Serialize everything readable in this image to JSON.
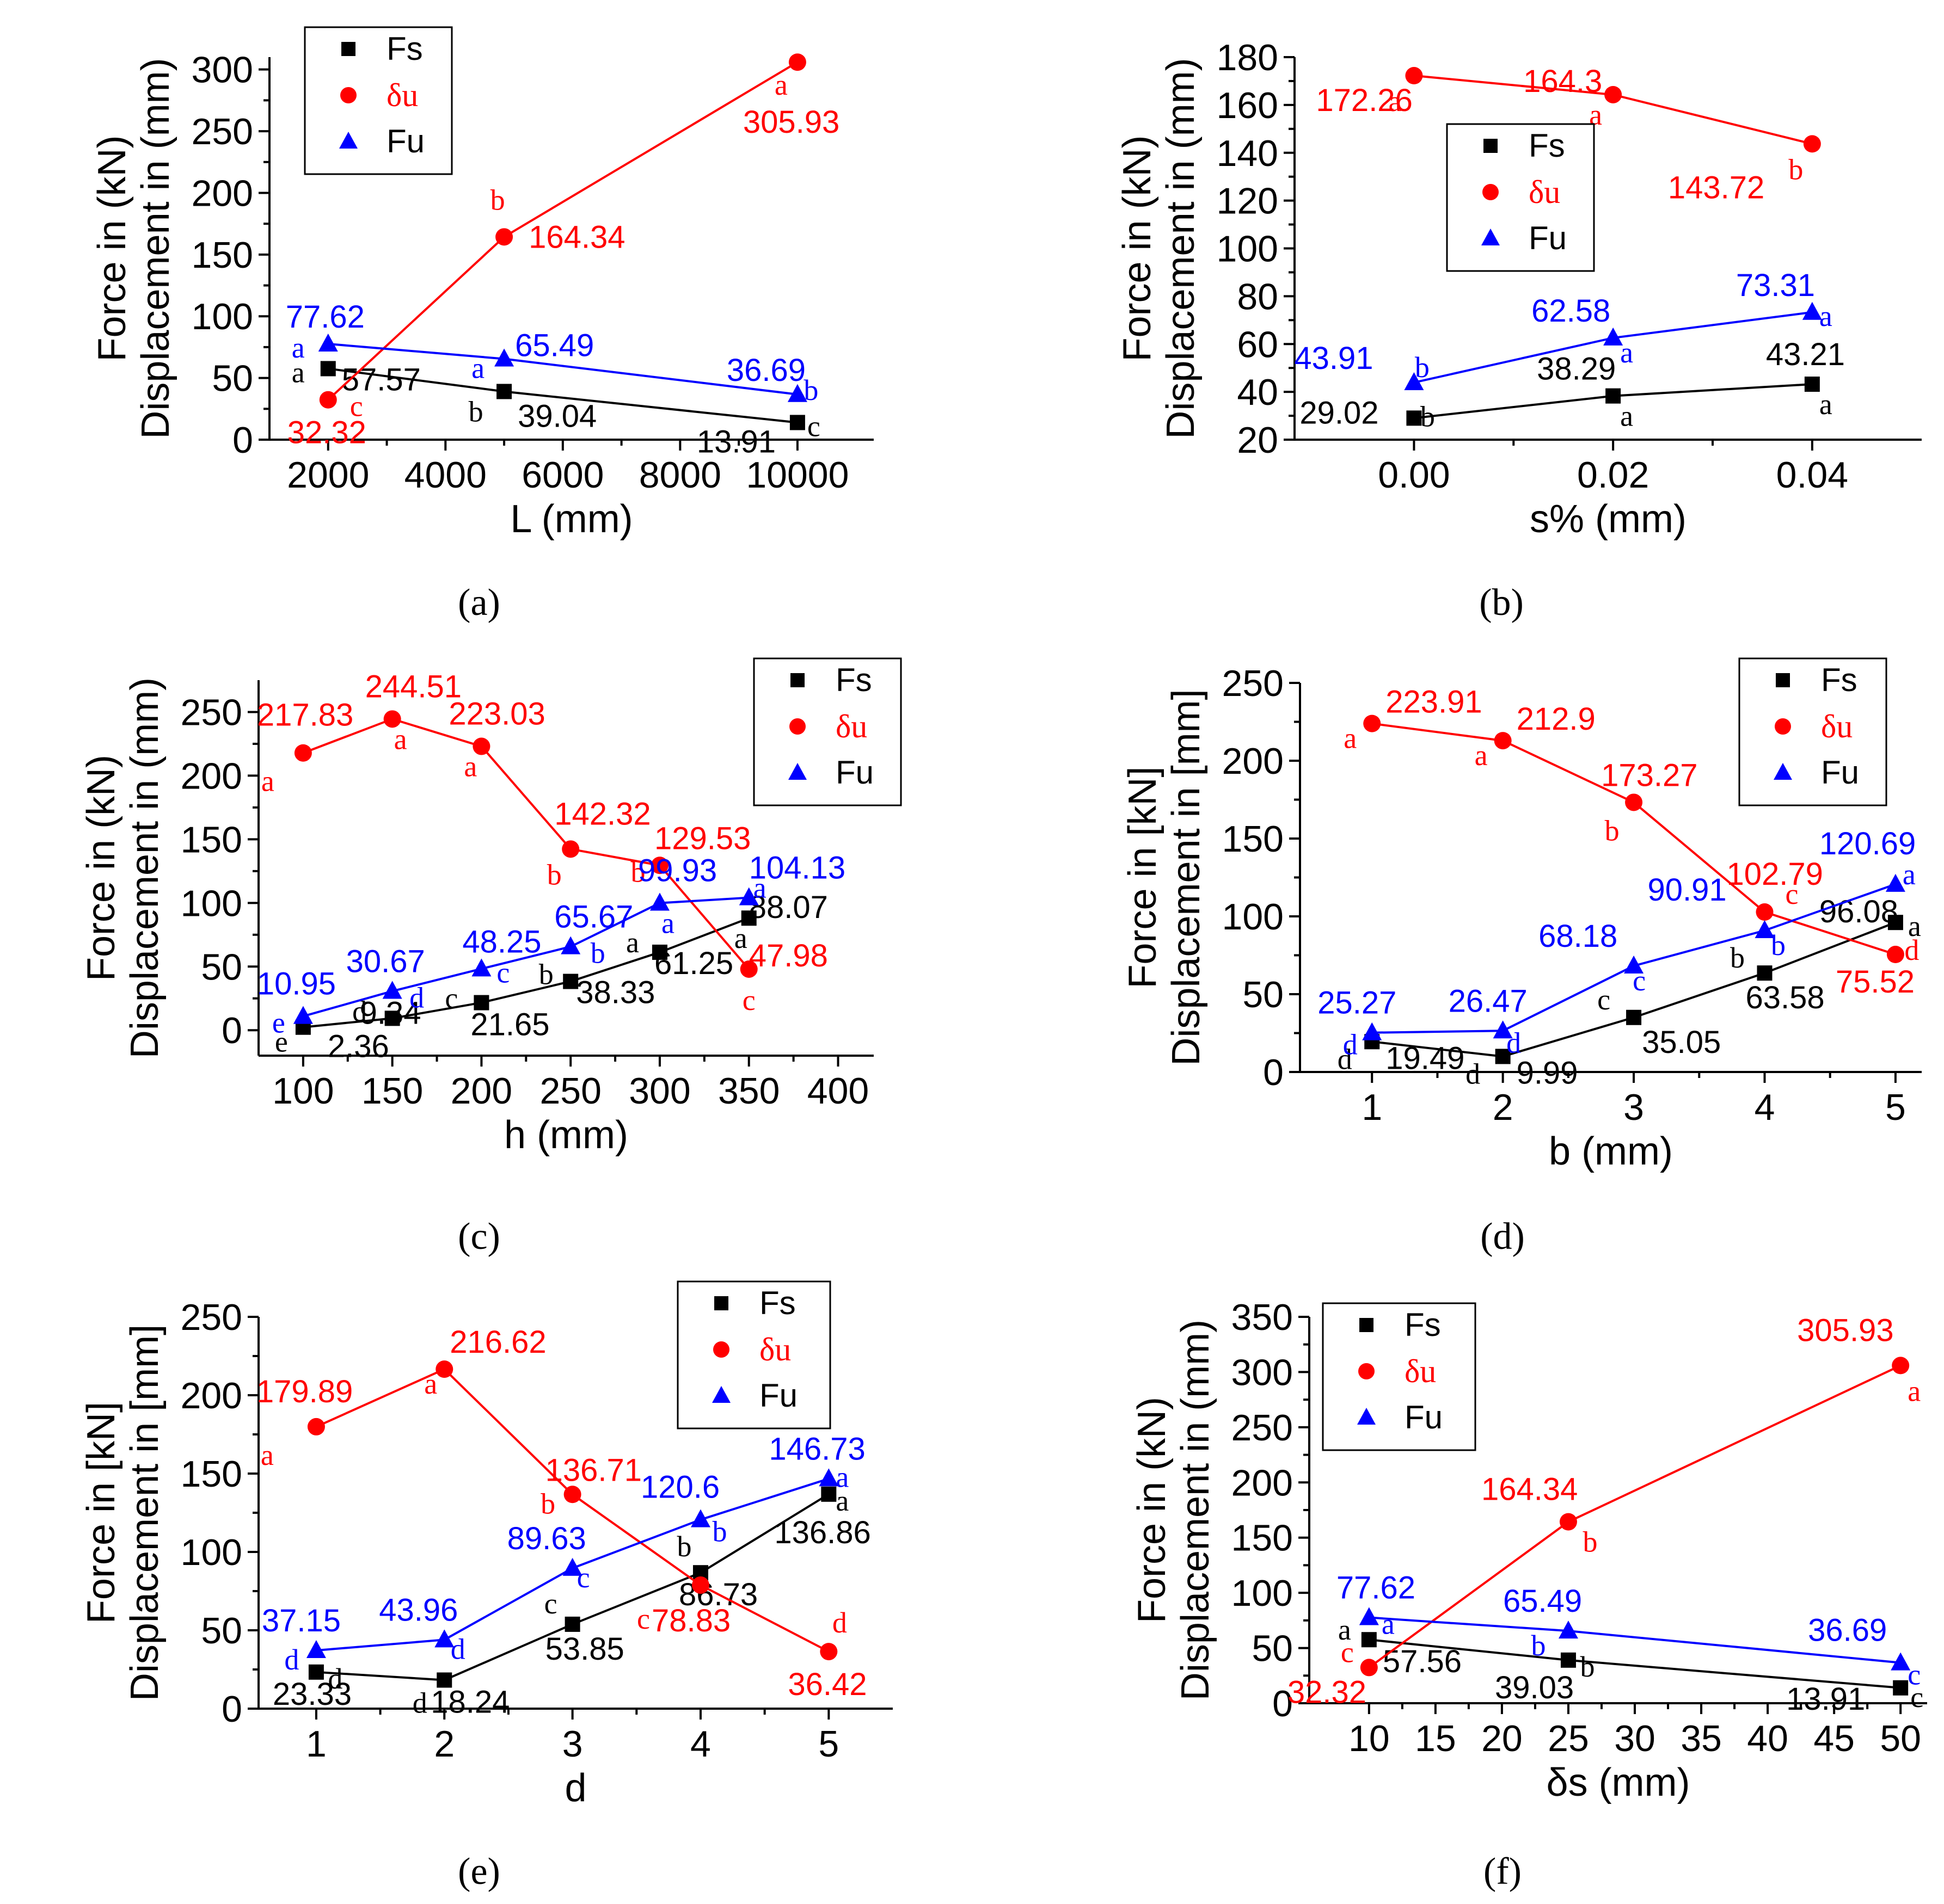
{
  "colors": {
    "Fs": "#000000",
    "du": "#ff0000",
    "Fu": "#0000ff"
  },
  "legend": [
    "Fs",
    "δu",
    "Fu"
  ],
  "chart_data": [
    {
      "type": "line",
      "caption": "(a)",
      "xlabel": "L (mm)",
      "ylabel": [
        "Force in (kN)",
        "Displacement in (mm)"
      ],
      "xlim": [
        1000,
        11300
      ],
      "ylim": [
        0,
        310
      ],
      "xticks": [
        2000,
        4000,
        6000,
        8000,
        10000
      ],
      "xticklabels": [
        "2000",
        "4000",
        "6000",
        "8000",
        "10000"
      ],
      "yticks": [
        0,
        50,
        100,
        150,
        200,
        250,
        300
      ],
      "series": [
        {
          "name": "Fs",
          "x": [
            2000,
            5000,
            10000
          ],
          "y": [
            57.57,
            39.04,
            13.91
          ],
          "labels": [
            "57.57",
            "39.04",
            "13.91"
          ],
          "letters": [
            "a",
            "b",
            "c"
          ]
        },
        {
          "name": "δu",
          "x": [
            2000,
            5000,
            10000
          ],
          "y": [
            32.32,
            164.34,
            305.93
          ],
          "labels": [
            "32.32",
            "164.34",
            "305.93"
          ],
          "letters": [
            "c",
            "b",
            "a"
          ]
        },
        {
          "name": "Fu",
          "x": [
            2000,
            5000,
            10000
          ],
          "y": [
            77.62,
            65.49,
            36.69
          ],
          "labels": [
            "77.62",
            "65.49",
            "36.69"
          ],
          "letters": [
            "a",
            "a",
            "b"
          ]
        }
      ]
    },
    {
      "type": "line",
      "caption": "(b)",
      "xlabel": "s% (mm)",
      "ylabel": [
        "Force in (kN)",
        "Displacement in (mm)"
      ],
      "xlim": [
        -0.012,
        0.051
      ],
      "ylim": [
        20,
        180
      ],
      "xticks": [
        0.0,
        0.02,
        0.04
      ],
      "xticklabels": [
        "0.00",
        "0.02",
        "0.04"
      ],
      "yticks": [
        20,
        40,
        60,
        80,
        100,
        120,
        140,
        160,
        180
      ],
      "series": [
        {
          "name": "Fs",
          "x": [
            0.0,
            0.02,
            0.04
          ],
          "y": [
            29.02,
            38.29,
            43.21
          ],
          "labels": [
            "29.02",
            "38.29",
            "43.21"
          ],
          "letters": [
            "b",
            "a",
            "a"
          ]
        },
        {
          "name": "δu",
          "x": [
            0.0,
            0.02,
            0.04
          ],
          "y": [
            172.26,
            164.3,
            143.72
          ],
          "labels": [
            "172.26",
            "164.3",
            "143.72"
          ],
          "letters": [
            "a",
            "a",
            "b"
          ]
        },
        {
          "name": "Fu",
          "x": [
            0.0,
            0.02,
            0.04
          ],
          "y": [
            43.91,
            62.58,
            73.31
          ],
          "labels": [
            "43.91",
            "62.58",
            "73.31"
          ],
          "letters": [
            "b",
            "a",
            "a"
          ]
        }
      ]
    },
    {
      "type": "line",
      "caption": "(c)",
      "xlabel": "h (mm)",
      "ylabel": [
        "Force in (kN)",
        "Displacement in (mm)"
      ],
      "xlim": [
        75,
        420
      ],
      "ylim": [
        -20,
        275
      ],
      "xticks": [
        100,
        150,
        200,
        250,
        300,
        350,
        400
      ],
      "xticklabels": [
        "100",
        "150",
        "200",
        "250",
        "300",
        "350",
        "400"
      ],
      "yticks": [
        0,
        50,
        100,
        150,
        200,
        250
      ],
      "series": [
        {
          "name": "Fs",
          "x": [
            100,
            150,
            200,
            250,
            300,
            350
          ],
          "y": [
            2.36,
            9.34,
            21.65,
            38.33,
            61.25,
            88.07
          ],
          "labels": [
            "2.36",
            "9.34",
            "21.65",
            "38.33",
            "61.25",
            "88.07"
          ],
          "letters": [
            "e",
            "d",
            "c",
            "b",
            "a",
            "a"
          ]
        },
        {
          "name": "δu",
          "x": [
            100,
            150,
            200,
            250,
            300,
            350
          ],
          "y": [
            217.83,
            244.51,
            223.03,
            142.32,
            129.53,
            47.98
          ],
          "labels": [
            "217.83",
            "244.51",
            "223.03",
            "142.32",
            "129.53",
            "47.98"
          ],
          "letters": [
            "a",
            "a",
            "a",
            "b",
            "b",
            "c"
          ]
        },
        {
          "name": "Fu",
          "x": [
            100,
            150,
            200,
            250,
            300,
            350
          ],
          "y": [
            10.95,
            30.67,
            48.25,
            65.67,
            99.93,
            104.13
          ],
          "labels": [
            "10.95",
            "30.67",
            "48.25",
            "65.67",
            "99.93",
            "104.13"
          ],
          "letters": [
            "e",
            "d",
            "c",
            "b",
            "a",
            "a"
          ]
        }
      ]
    },
    {
      "type": "line",
      "caption": "(d)",
      "xlabel": "b (mm)",
      "ylabel": [
        "Force in [kN]",
        "Displacement in [mm]"
      ],
      "xlim": [
        0.45,
        5.2
      ],
      "ylim": [
        0,
        250
      ],
      "xticks": [
        1,
        2,
        3,
        4,
        5
      ],
      "xticklabels": [
        "1",
        "2",
        "3",
        "4",
        "5"
      ],
      "yticks": [
        0,
        50,
        100,
        150,
        200,
        250
      ],
      "series": [
        {
          "name": "Fs",
          "x": [
            1,
            2,
            3,
            4,
            5
          ],
          "y": [
            19.49,
            9.99,
            35.05,
            63.58,
            96.08
          ],
          "labels": [
            "19.49",
            "9.99",
            "35.05",
            "63.58",
            "96.08"
          ],
          "letters": [
            "d",
            "d",
            "c",
            "b",
            "a"
          ]
        },
        {
          "name": "δu",
          "x": [
            1,
            2,
            3,
            4,
            5
          ],
          "y": [
            223.91,
            212.9,
            173.27,
            102.79,
            75.52
          ],
          "labels": [
            "223.91",
            "212.9",
            "173.27",
            "102.79",
            "75.52"
          ],
          "letters": [
            "a",
            "a",
            "b",
            "c",
            "d"
          ]
        },
        {
          "name": "Fu",
          "x": [
            1,
            2,
            3,
            4,
            5
          ],
          "y": [
            25.27,
            26.47,
            68.18,
            90.91,
            120.69
          ],
          "labels": [
            "25.27",
            "26.47",
            "68.18",
            "90.91",
            "120.69"
          ],
          "letters": [
            "d",
            "d",
            "c",
            "b",
            "a"
          ]
        }
      ]
    },
    {
      "type": "line",
      "caption": "(e)",
      "xlabel": "d",
      "ylabel": [
        "Force in [kN]",
        "Displacement in [mm]"
      ],
      "xlim": [
        0.55,
        5.5
      ],
      "ylim": [
        0,
        250
      ],
      "xticks": [
        1,
        2,
        3,
        4,
        5
      ],
      "xticklabels": [
        "1",
        "2",
        "3",
        "4",
        "5"
      ],
      "yticks": [
        0,
        50,
        100,
        150,
        200,
        250
      ],
      "series": [
        {
          "name": "Fs",
          "x": [
            1,
            2,
            3,
            4,
            5
          ],
          "y": [
            23.33,
            18.24,
            53.85,
            86.73,
            136.86
          ],
          "labels": [
            "23.33",
            "18.24",
            "53.85",
            "86.73",
            "136.86"
          ],
          "letters": [
            "d",
            "d",
            "c",
            "b",
            "a"
          ]
        },
        {
          "name": "δu",
          "x": [
            1,
            2,
            3,
            4,
            5
          ],
          "y": [
            179.89,
            216.62,
            136.71,
            78.83,
            36.42
          ],
          "labels": [
            "179.89",
            "216.62",
            "136.71",
            "78.83",
            "36.42"
          ],
          "letters": [
            "a",
            "a",
            "b",
            "c",
            "d"
          ]
        },
        {
          "name": "Fu",
          "x": [
            1,
            2,
            3,
            4,
            5
          ],
          "y": [
            37.15,
            43.96,
            89.63,
            120.6,
            146.73
          ],
          "labels": [
            "37.15",
            "43.96",
            "89.63",
            "120.6",
            "146.73"
          ],
          "letters": [
            "d",
            "d",
            "c",
            "b",
            "a"
          ]
        }
      ]
    },
    {
      "type": "line",
      "caption": "(f)",
      "xlabel": "δs (mm)",
      "ylabel": [
        "Force in (kN)",
        "Displacement in (mm)"
      ],
      "xlim": [
        5.5,
        52
      ],
      "ylim": [
        0,
        350
      ],
      "xticks": [
        10,
        15,
        20,
        25,
        30,
        35,
        40,
        45,
        50
      ],
      "xticklabels": [
        "10",
        "15",
        "20",
        "25",
        "30",
        "35",
        "40",
        "45",
        "50"
      ],
      "yticks": [
        0,
        50,
        100,
        150,
        200,
        250,
        300,
        350
      ],
      "series": [
        {
          "name": "Fs",
          "x": [
            10,
            25,
            50
          ],
          "y": [
            57.56,
            39.03,
            13.91
          ],
          "labels": [
            "57.56",
            "39.03",
            "13.91"
          ],
          "letters": [
            "a",
            "b",
            "c"
          ]
        },
        {
          "name": "δu",
          "x": [
            10,
            25,
            50
          ],
          "y": [
            32.32,
            164.34,
            305.93
          ],
          "labels": [
            "32.32",
            "164.34",
            "305.93"
          ],
          "letters": [
            "c",
            "b",
            "a"
          ]
        },
        {
          "name": "Fu",
          "x": [
            10,
            25,
            50
          ],
          "y": [
            77.62,
            65.49,
            36.69
          ],
          "labels": [
            "77.62",
            "65.49",
            "36.69"
          ],
          "letters": [
            "a",
            "b",
            "c"
          ]
        }
      ]
    }
  ]
}
